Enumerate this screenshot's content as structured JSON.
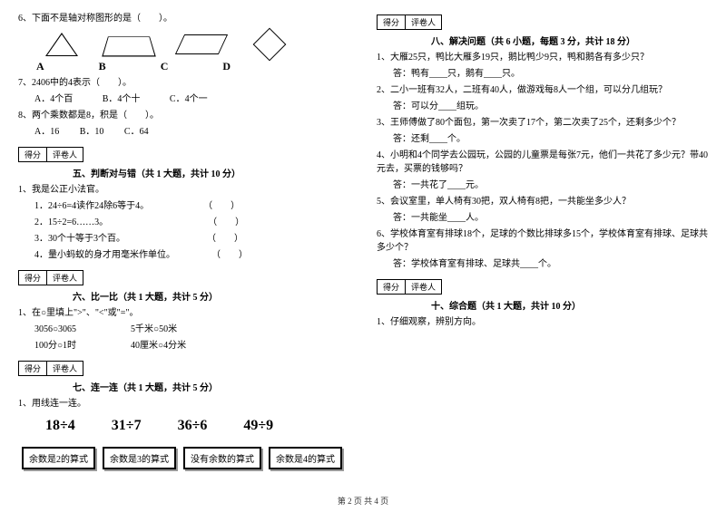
{
  "left": {
    "q6": "6、下面不是轴对称图形的是（　　）。",
    "labels": {
      "a": "A",
      "b": "B",
      "c": "C",
      "d": "D"
    },
    "q7": "7、2406中的4表示（　　）。",
    "q7a": "A．4个百",
    "q7b": "B．4个十",
    "q7c": "C．4个一",
    "q8": "8、两个乘数都是8，积是（　　）。",
    "q8a": "A．16",
    "q8b": "B．10",
    "q8c": "C．64",
    "sec5": "五、判断对与错（共 1 大题，共计 10 分）",
    "j0": "1、我是公正小法官。",
    "j1": "1．24÷6=4读作24除6等于4。　　　　　　　（　　）",
    "j2": "2．15÷2=6……3。　　　　　　　　　　　　（　　）",
    "j3": "3．30个十等于3个百。　　　　　　　　　　（　　）",
    "j4": "4．量小蚂蚁的身才用毫米作单位。　　　　　（　　）",
    "sec6": "六、比一比（共 1 大题，共计 5 分）",
    "c0": "1、在○里填上\">\"、\"<\"或\"=\"。",
    "c1a": "3056○3065",
    "c1b": "5千米○50米",
    "c2a": "100分○1时",
    "c2b": "40厘米○4分米",
    "sec7": "七、连一连（共 1 大题，共计 5 分）",
    "l0": "1、用线连一连。",
    "d1": "18÷4",
    "d2": "31÷7",
    "d3": "36÷6",
    "d4": "49÷9",
    "b1": "余数是2的算式",
    "b2": "余数是3的算式",
    "b3": "没有余数的算式",
    "b4": "余数是4的算式",
    "sb1": "得分",
    "sb2": "评卷人"
  },
  "right": {
    "sec8": "八、解决问题（共 6 小题，每题 3 分，共计 18 分）",
    "p1": "1、大雁25只，鸭比大雁多19只，鹅比鸭少9只，鸭和鹅各有多少只？",
    "a1": "答：鸭有____只，鹅有____只。",
    "p2": "2、二小一班有32人，二班有40人，做游戏每8人一个组，可以分几组玩？",
    "a2": "答：可以分____组玩。",
    "p3": "3、王师傅做了80个面包，第一次卖了17个，第二次卖了25个，还剩多少个？",
    "a3": "答：还剩____个。",
    "p4": "4、小明和4个同学去公园玩，公园的儿童票是每张7元，他们一共花了多少元？带40元去，买票的钱够吗？",
    "a4": "答：一共花了____元。",
    "p5": "5、会议室里，单人椅有30把，双人椅有8把，一共能坐多少人？",
    "a5": "答：一共能坐____人。",
    "p6": "6、学校体育室有排球18个，足球的个数比排球多15个，学校体育室有排球、足球共多少个？",
    "a6": "答：学校体育室有排球、足球共____个。",
    "sec10": "十、综合题（共 1 大题，共计 10 分）",
    "z1": "1、仔细观察，辨别方向。",
    "sb1": "得分",
    "sb2": "评卷人"
  },
  "footer": "第 2 页 共 4 页"
}
